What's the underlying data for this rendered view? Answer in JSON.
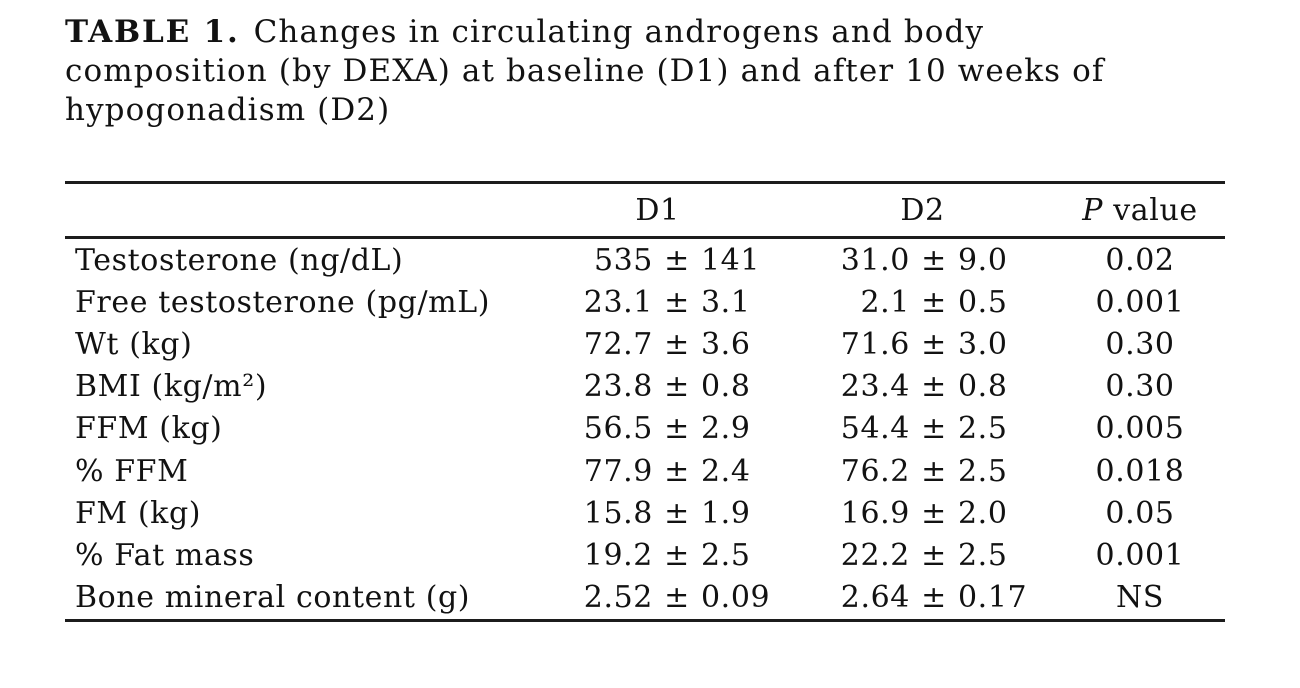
{
  "title": {
    "label": "TABLE 1.",
    "lines": [
      "Changes in circulating androgens and body",
      "composition (by DEXA) at baseline (D1) and after 10 weeks of",
      "hypogonadism (D2)"
    ]
  },
  "table": {
    "pm": "±",
    "header": {
      "d1": "D1",
      "d2": "D2",
      "p_symbol": "P",
      "p_rest": " value"
    },
    "rows": [
      {
        "label": "Testosterone (ng/dL)",
        "d1_mean": "535",
        "d1_sd": "141",
        "d2_mean": "31.0",
        "d2_sd": "9.0",
        "p": "0.02"
      },
      {
        "label": "Free testosterone (pg/mL)",
        "d1_mean": "23.1",
        "d1_sd": "3.1",
        "d2_mean": "2.1",
        "d2_sd": "0.5",
        "p": "0.001"
      },
      {
        "label": "Wt (kg)",
        "d1_mean": "72.7",
        "d1_sd": "3.6",
        "d2_mean": "71.6",
        "d2_sd": "3.0",
        "p": "0.30"
      },
      {
        "label": "BMI (kg/m²)",
        "d1_mean": "23.8",
        "d1_sd": "0.8",
        "d2_mean": "23.4",
        "d2_sd": "0.8",
        "p": "0.30"
      },
      {
        "label": "FFM (kg)",
        "d1_mean": "56.5",
        "d1_sd": "2.9",
        "d2_mean": "54.4",
        "d2_sd": "2.5",
        "p": "0.005"
      },
      {
        "label": "% FFM",
        "d1_mean": "77.9",
        "d1_sd": "2.4",
        "d2_mean": "76.2",
        "d2_sd": "2.5",
        "p": "0.018"
      },
      {
        "label": "FM (kg)",
        "d1_mean": "15.8",
        "d1_sd": "1.9",
        "d2_mean": "16.9",
        "d2_sd": "2.0",
        "p": "0.05"
      },
      {
        "label": "% Fat mass",
        "d1_mean": "19.2",
        "d1_sd": "2.5",
        "d2_mean": "22.2",
        "d2_sd": "2.5",
        "p": "0.001"
      },
      {
        "label": "Bone mineral content (g)",
        "d1_mean": "2.52",
        "d1_sd": "0.09",
        "d2_mean": "2.64",
        "d2_sd": "0.17",
        "p": "NS"
      }
    ]
  }
}
